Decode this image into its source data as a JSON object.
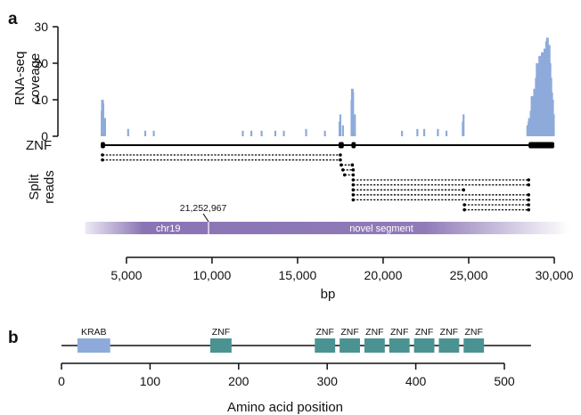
{
  "panel_a": {
    "label": "a",
    "coverage_ylabel": [
      "RNA-seq",
      "coveage"
    ],
    "gene_label": "ZNF",
    "split_label": [
      "Split",
      "reads"
    ],
    "segment_left": "chr19",
    "segment_right": "novel segment",
    "breakpoint_label": "21,252,967",
    "xlabel": "bp",
    "colors": {
      "coverage": "#8eaadb",
      "segment": "#8a74b4",
      "gene": "#000000"
    }
  },
  "panel_b": {
    "label": "b",
    "xlabel": "Amino acid position",
    "colors": {
      "krab": "#8eaadb",
      "znf": "#4a9392"
    }
  },
  "chart_data": [
    {
      "type": "area",
      "panel": "a",
      "ylabel": "RNA-seq coveage",
      "xlabel": "bp",
      "xlim": [
        3000,
        30000
      ],
      "ylim": [
        0,
        30
      ],
      "xticks": [
        5000,
        10000,
        15000,
        20000,
        25000,
        30000
      ],
      "xtick_labels": [
        "5,000",
        "10,000",
        "15,000",
        "20,000",
        "25,000",
        "30,000"
      ],
      "yticks": [
        0,
        10,
        20,
        30
      ],
      "ytick_labels": [
        "0",
        "10",
        "20",
        "30"
      ],
      "coverage_peaks": [
        {
          "x": 3600,
          "y": 10
        },
        {
          "x": 3750,
          "y": 5
        },
        {
          "x": 5100,
          "y": 2
        },
        {
          "x": 6100,
          "y": 1.5
        },
        {
          "x": 6600,
          "y": 1.5
        },
        {
          "x": 11800,
          "y": 1.5
        },
        {
          "x": 12300,
          "y": 1.5
        },
        {
          "x": 12900,
          "y": 1.5
        },
        {
          "x": 13700,
          "y": 1.5
        },
        {
          "x": 14200,
          "y": 1.5
        },
        {
          "x": 15500,
          "y": 2
        },
        {
          "x": 16600,
          "y": 1.5
        },
        {
          "x": 17500,
          "y": 6
        },
        {
          "x": 17650,
          "y": 3
        },
        {
          "x": 18200,
          "y": 13
        },
        {
          "x": 18350,
          "y": 6
        },
        {
          "x": 21100,
          "y": 1.5
        },
        {
          "x": 22000,
          "y": 2
        },
        {
          "x": 22400,
          "y": 2
        },
        {
          "x": 23200,
          "y": 2
        },
        {
          "x": 23700,
          "y": 1.5
        },
        {
          "x": 24700,
          "y": 6
        },
        {
          "x": 28500,
          "y": 4
        },
        {
          "x": 28800,
          "y": 9
        },
        {
          "x": 29000,
          "y": 20
        },
        {
          "x": 29200,
          "y": 21
        },
        {
          "x": 29400,
          "y": 18
        },
        {
          "x": 29600,
          "y": 27
        },
        {
          "x": 29750,
          "y": 20
        },
        {
          "x": 29900,
          "y": 10
        }
      ],
      "gene": {
        "name": "ZNF",
        "start": 3600,
        "end": 30000,
        "exons": [
          {
            "start": 3500,
            "end": 3750
          },
          {
            "start": 17400,
            "end": 17700
          },
          {
            "start": 18150,
            "end": 18400
          },
          {
            "start": 28500,
            "end": 30000
          }
        ]
      },
      "split_reads": [
        {
          "start": 3600,
          "end": 17500
        },
        {
          "start": 3600,
          "end": 17500
        },
        {
          "start": 17550,
          "end": 18200
        },
        {
          "start": 17650,
          "end": 18250
        },
        {
          "start": 17750,
          "end": 18250
        },
        {
          "start": 18250,
          "end": 28500
        },
        {
          "start": 18250,
          "end": 28500
        },
        {
          "start": 18250,
          "end": 24700
        },
        {
          "start": 18250,
          "end": 28500
        },
        {
          "start": 18250,
          "end": 28500
        },
        {
          "start": 24750,
          "end": 28500
        },
        {
          "start": 24750,
          "end": 28500
        }
      ],
      "segments": [
        {
          "label": "chr19",
          "start": 3000,
          "end": 9800
        },
        {
          "label": "novel segment",
          "start": 9800,
          "end": 30500
        }
      ],
      "breakpoint": {
        "x": 9800,
        "label": "21,252,967"
      }
    },
    {
      "type": "bar",
      "panel": "b",
      "xlabel": "Amino acid position",
      "xlim": [
        0,
        520
      ],
      "xticks": [
        0,
        100,
        200,
        300,
        400,
        500
      ],
      "xtick_labels": [
        "0",
        "100",
        "200",
        "300",
        "400",
        "500"
      ],
      "protein_length": 520,
      "domains": [
        {
          "name": "KRAB",
          "start": 18,
          "end": 55
        },
        {
          "name": "ZNF",
          "start": 168,
          "end": 192
        },
        {
          "name": "ZNF",
          "start": 286,
          "end": 309
        },
        {
          "name": "ZNF",
          "start": 314,
          "end": 337
        },
        {
          "name": "ZNF",
          "start": 342,
          "end": 365
        },
        {
          "name": "ZNF",
          "start": 370,
          "end": 393
        },
        {
          "name": "ZNF",
          "start": 398,
          "end": 421
        },
        {
          "name": "ZNF",
          "start": 426,
          "end": 449
        },
        {
          "name": "ZNF",
          "start": 454,
          "end": 477
        }
      ]
    }
  ]
}
